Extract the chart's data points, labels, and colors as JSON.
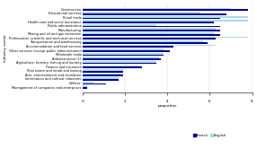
{
  "categories": [
    "Construction",
    "Educational services",
    "Retail trade",
    "Health care and social assistance",
    "Public administration",
    "Manufacturing",
    "Mining and oil and gas extraction",
    "Professional, scientific and technical services",
    "Transportation and warehousing",
    "Accommodation and food services",
    "Other services (except public administration)",
    "Wholesale trade",
    "Administrative (1)",
    "Agriculture, forestry, fishing and hunting",
    "Finance and insurance",
    "Real estate and rental and leasing",
    "Arts, entertainment and recreation",
    "Information and cultural industries",
    "Utilities",
    "Management of companies and enterprises"
  ],
  "french": [
    7.8,
    6.8,
    6.5,
    6.2,
    6.5,
    6.5,
    6.5,
    6.3,
    5.9,
    4.3,
    4.1,
    3.8,
    3.7,
    3.5,
    2.8,
    1.9,
    1.9,
    1.7,
    1.1,
    0.2
  ],
  "english": [
    7.0,
    5.5,
    7.8,
    7.8,
    3.5,
    6.3,
    6.2,
    7.8,
    5.7,
    6.3,
    3.8,
    3.8,
    3.6,
    3.5,
    2.7,
    1.9,
    1.8,
    1.7,
    0.5,
    0.2
  ],
  "french_color": "#00008B",
  "english_color": "#ADD8E6",
  "xlabel": "proportion",
  "ylabel": "Industry sector",
  "xlim": [
    0,
    8
  ],
  "xticks": [
    0,
    2,
    4,
    6,
    8
  ],
  "legend_french": "French",
  "legend_english": "English",
  "bar_height": 0.38,
  "figwidth": 2.86,
  "figheight": 1.76,
  "dpi": 100
}
